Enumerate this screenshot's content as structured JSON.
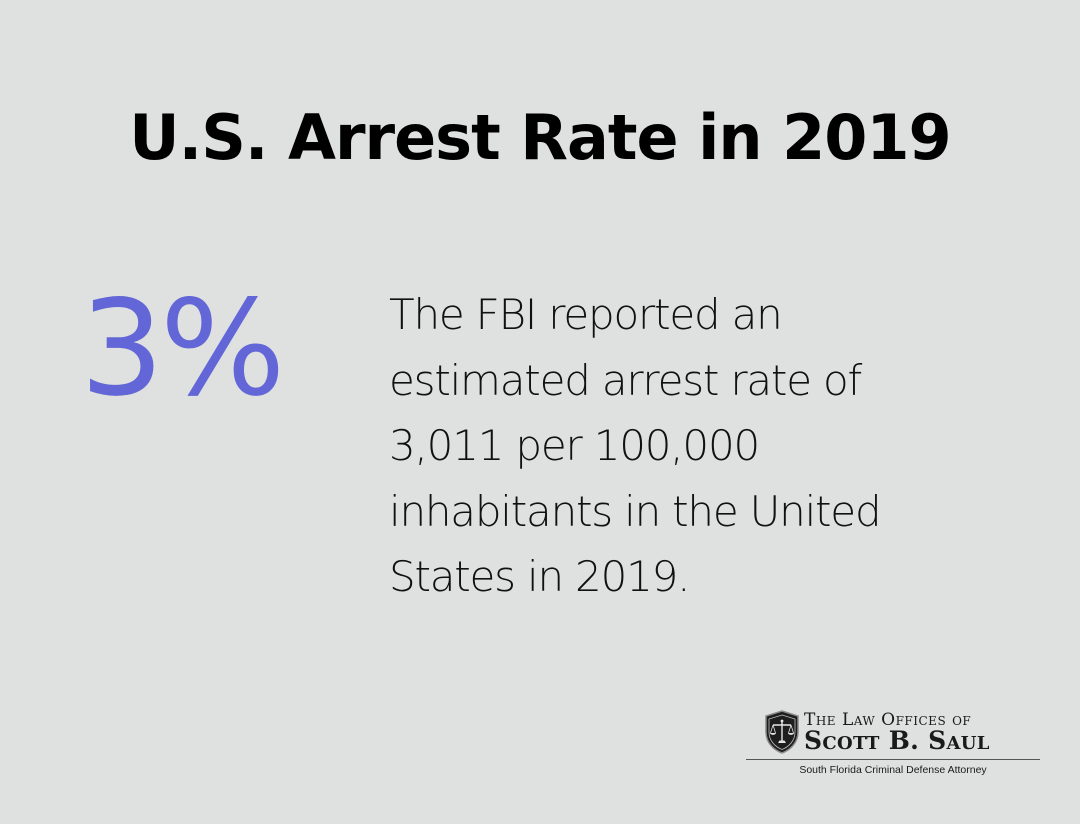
{
  "title": "U.S. Arrest Rate in 2019",
  "stat": {
    "value": "3%",
    "description_lines": [
      "The FBI reported an",
      "estimated arrest rate of",
      "3,011 per 100,000",
      "inhabitants in the United",
      "States in 2019."
    ]
  },
  "logo": {
    "line1": "The Law Offices of",
    "line2": "Scott B. Saul",
    "tagline": "South Florida Criminal Defense Attorney",
    "icon": "scales-of-justice-shield-icon"
  },
  "colors": {
    "background": "#dfe0e0",
    "accent": "#6266d6",
    "text": "#000000"
  }
}
